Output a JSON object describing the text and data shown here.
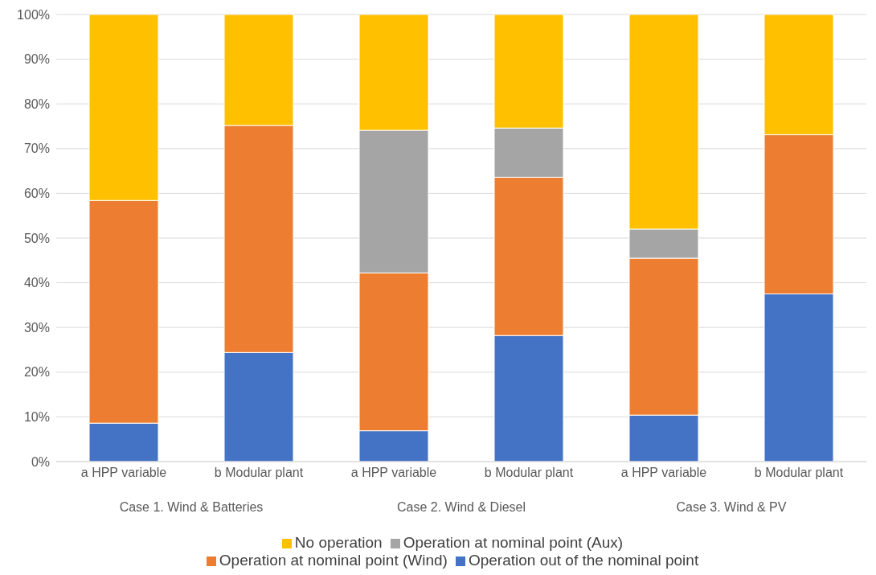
{
  "chart_data": {
    "type": "bar",
    "stacked": true,
    "categories": [
      "a HPP variable",
      "b Modular plant",
      "a HPP variable",
      "b Modular plant",
      "a HPP variable",
      "b Modular plant"
    ],
    "series": [
      {
        "name": "Operation out of the nominal point",
        "color": "#4472c4",
        "values": [
          8.6,
          24.4,
          6.9,
          28.2,
          10.4,
          37.5
        ]
      },
      {
        "name": "Operation at nominal point (Wind)",
        "color": "#ed7d31",
        "values": [
          49.8,
          50.8,
          35.3,
          35.4,
          35.1,
          35.6
        ]
      },
      {
        "name": "Operation at nominal point (Aux)",
        "color": "#a5a5a5",
        "values": [
          0,
          0,
          31.9,
          11.0,
          6.5,
          0
        ]
      },
      {
        "name": "No operation",
        "color": "#ffc000",
        "values": [
          41.6,
          24.8,
          25.9,
          25.4,
          48.0,
          26.9
        ]
      }
    ],
    "ylim": [
      0,
      100
    ],
    "yticks": [
      {
        "value": 0,
        "label": "0%"
      },
      {
        "value": 10,
        "label": "10%"
      },
      {
        "value": 20,
        "label": "20%"
      },
      {
        "value": 30,
        "label": "30%"
      },
      {
        "value": 40,
        "label": "40%"
      },
      {
        "value": 50,
        "label": "50%"
      },
      {
        "value": 60,
        "label": "60%"
      },
      {
        "value": 70,
        "label": "70%"
      },
      {
        "value": 80,
        "label": "80%"
      },
      {
        "value": 90,
        "label": "90%"
      },
      {
        "value": 100,
        "label": "100%"
      }
    ],
    "annotations": [
      "Case 1. Wind & Batteries",
      "Case 2. Wind & Diesel",
      "Case 3. Wind & PV"
    ],
    "grid": "y",
    "legend": "bottom"
  }
}
